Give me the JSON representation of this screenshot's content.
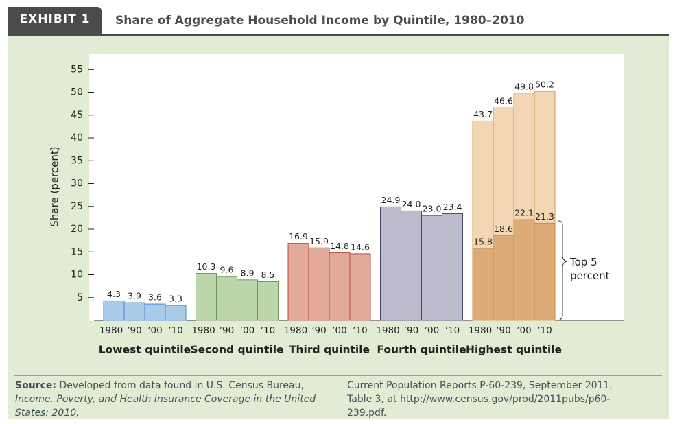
{
  "exhibit_label": "EXHIBIT 1",
  "chart_data": {
    "type": "bar",
    "title": "Share of Aggregate Household Income by Quintile, 1980–2010",
    "y_label": "Share (percent)",
    "ylim": [
      0,
      58.5
    ],
    "yticks": [
      5,
      10,
      15,
      20,
      25,
      30,
      35,
      40,
      45,
      50,
      55
    ],
    "year_labels": [
      "1980",
      "’90",
      "’00",
      "’10"
    ],
    "groups": [
      {
        "name": "Lowest quintile",
        "color": "#a9cbea",
        "stroke": "#4a86c5",
        "values": [
          4.3,
          3.9,
          3.6,
          3.3
        ],
        "value_labels": [
          "4.3",
          "3.9",
          "3.6",
          "3.3"
        ]
      },
      {
        "name": "Second quintile",
        "color": "#bcd6ab",
        "stroke": "#6c9a5a",
        "values": [
          10.3,
          9.6,
          8.9,
          8.5
        ],
        "value_labels": [
          "10.3",
          "9.6",
          "8.9",
          "8.5"
        ]
      },
      {
        "name": "Third quintile",
        "color": "#e2aa9b",
        "stroke": "#b2503f",
        "values": [
          16.9,
          15.9,
          14.8,
          14.6
        ],
        "value_labels": [
          "16.9",
          "15.9",
          "14.8",
          "14.6"
        ]
      },
      {
        "name": "Fourth quintile",
        "color": "#bcbbcb",
        "stroke": "#474766",
        "values": [
          24.9,
          24.0,
          23.0,
          23.4
        ],
        "value_labels": [
          "24.9",
          "24.0",
          "23.0",
          "23.4"
        ]
      },
      {
        "name": "Highest quintile",
        "color": "#f3d6b3",
        "stroke": "#d59a5a",
        "values": [
          43.7,
          46.6,
          49.8,
          50.2
        ],
        "value_labels": [
          "43.7",
          "46.6",
          "49.8",
          "50.2"
        ]
      }
    ],
    "top5": {
      "name": "Top 5 percent",
      "color": "#dcab78",
      "stroke": "#c98d50",
      "values": [
        15.8,
        18.6,
        22.1,
        21.3
      ],
      "value_labels": [
        "15.8",
        "18.6",
        "22.1",
        "21.3"
      ]
    }
  },
  "source": {
    "label": "Source:",
    "text_1": "Developed from data found in U.S. Census Bureau,",
    "publication": "Income, Poverty, and Health Insurance Coverage in the United States: 2010,",
    "text_2": "Current Population Reports P-60-239, September 2011, Table 3, at http://www.census.gov/prod/2011pubs/p60-239.pdf."
  }
}
